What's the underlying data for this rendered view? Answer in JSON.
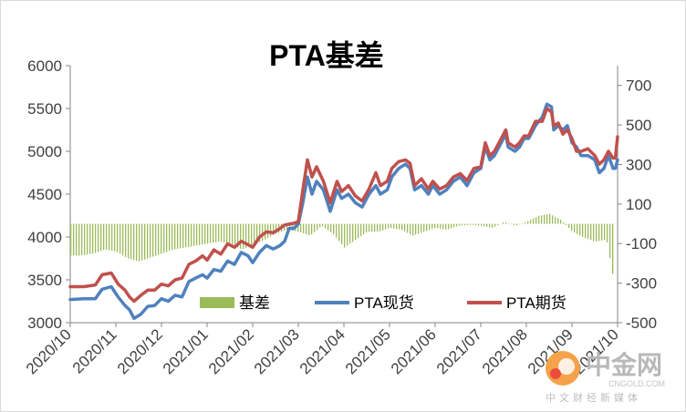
{
  "chart_data": {
    "type": "line",
    "title": "PTA基差",
    "legend_position": "bottom-inside",
    "grid": false,
    "x_ticks": [
      "2020/10",
      "2020/11",
      "2020/12",
      "2021/01",
      "2021/02",
      "2021/03",
      "2021/04",
      "2021/05",
      "2021/06",
      "2021/07",
      "2021/08",
      "2021/09",
      "2021/10"
    ],
    "y_left": {
      "min": 3000,
      "max": 6000,
      "ticks": [
        3000,
        3500,
        4000,
        4500,
        5000,
        5500,
        6000
      ]
    },
    "y_right": {
      "min": -500,
      "max": 800,
      "ticks": [
        -500,
        -300,
        -100,
        100,
        300,
        500,
        700
      ]
    },
    "series": [
      {
        "name": "基差",
        "kind": "bar",
        "axis": "right",
        "color": "#9bbb59",
        "points": [
          [
            0.0,
            -160
          ],
          [
            0.25,
            -160
          ],
          [
            0.5,
            -150
          ],
          [
            0.75,
            -130
          ],
          [
            1.0,
            -140
          ],
          [
            1.25,
            -175
          ],
          [
            1.5,
            -190
          ],
          [
            1.75,
            -170
          ],
          [
            2.0,
            -150
          ],
          [
            2.25,
            -130
          ],
          [
            2.5,
            -120
          ],
          [
            2.75,
            -110
          ],
          [
            3.0,
            -100
          ],
          [
            3.25,
            -90
          ],
          [
            3.5,
            -100
          ],
          [
            3.75,
            -130
          ],
          [
            4.0,
            -110
          ],
          [
            4.25,
            -80
          ],
          [
            4.5,
            -50
          ],
          [
            4.75,
            -30
          ],
          [
            5.0,
            -40
          ],
          [
            5.25,
            -60
          ],
          [
            5.5,
            -10
          ],
          [
            5.75,
            -50
          ],
          [
            6.0,
            -120
          ],
          [
            6.25,
            -80
          ],
          [
            6.5,
            -40
          ],
          [
            6.75,
            -40
          ],
          [
            7.0,
            -20
          ],
          [
            7.25,
            -30
          ],
          [
            7.5,
            -60
          ],
          [
            7.75,
            -40
          ],
          [
            8.0,
            -20
          ],
          [
            8.25,
            -30
          ],
          [
            8.5,
            -10
          ],
          [
            8.75,
            -5
          ],
          [
            9.0,
            -10
          ],
          [
            9.25,
            -20
          ],
          [
            9.5,
            10
          ],
          [
            9.75,
            -10
          ],
          [
            10.0,
            10
          ],
          [
            10.25,
            40
          ],
          [
            10.5,
            50
          ],
          [
            10.75,
            20
          ],
          [
            11.0,
            -40
          ],
          [
            11.25,
            -70
          ],
          [
            11.5,
            -90
          ],
          [
            11.75,
            -80
          ],
          [
            11.9,
            -280
          ]
        ]
      },
      {
        "name": "PTA现货",
        "kind": "line",
        "axis": "left",
        "color": "#4f81bd",
        "points": [
          [
            0.0,
            3270
          ],
          [
            0.3,
            3280
          ],
          [
            0.55,
            3280
          ],
          [
            0.7,
            3390
          ],
          [
            0.9,
            3420
          ],
          [
            1.05,
            3300
          ],
          [
            1.2,
            3200
          ],
          [
            1.3,
            3150
          ],
          [
            1.4,
            3050
          ],
          [
            1.55,
            3100
          ],
          [
            1.7,
            3190
          ],
          [
            1.85,
            3200
          ],
          [
            2.0,
            3280
          ],
          [
            2.15,
            3250
          ],
          [
            2.3,
            3320
          ],
          [
            2.45,
            3300
          ],
          [
            2.6,
            3480
          ],
          [
            2.75,
            3520
          ],
          [
            2.9,
            3560
          ],
          [
            3.0,
            3520
          ],
          [
            3.15,
            3620
          ],
          [
            3.3,
            3600
          ],
          [
            3.45,
            3720
          ],
          [
            3.6,
            3680
          ],
          [
            3.75,
            3820
          ],
          [
            3.9,
            3780
          ],
          [
            4.0,
            3700
          ],
          [
            4.15,
            3820
          ],
          [
            4.3,
            3900
          ],
          [
            4.45,
            3860
          ],
          [
            4.6,
            3900
          ],
          [
            4.7,
            3950
          ],
          [
            4.8,
            4100
          ],
          [
            4.9,
            4100
          ],
          [
            5.0,
            4150
          ],
          [
            5.1,
            4400
          ],
          [
            5.2,
            4700
          ],
          [
            5.3,
            4500
          ],
          [
            5.4,
            4650
          ],
          [
            5.55,
            4550
          ],
          [
            5.7,
            4300
          ],
          [
            5.85,
            4550
          ],
          [
            5.95,
            4450
          ],
          [
            6.1,
            4500
          ],
          [
            6.25,
            4400
          ],
          [
            6.4,
            4350
          ],
          [
            6.55,
            4500
          ],
          [
            6.7,
            4600
          ],
          [
            6.8,
            4500
          ],
          [
            6.95,
            4550
          ],
          [
            7.05,
            4700
          ],
          [
            7.2,
            4800
          ],
          [
            7.35,
            4850
          ],
          [
            7.45,
            4800
          ],
          [
            7.55,
            4550
          ],
          [
            7.7,
            4600
          ],
          [
            7.85,
            4500
          ],
          [
            7.95,
            4600
          ],
          [
            8.1,
            4500
          ],
          [
            8.25,
            4550
          ],
          [
            8.4,
            4650
          ],
          [
            8.55,
            4700
          ],
          [
            8.7,
            4600
          ],
          [
            8.85,
            4750
          ],
          [
            9.0,
            4800
          ],
          [
            9.1,
            5050
          ],
          [
            9.2,
            4900
          ],
          [
            9.3,
            4950
          ],
          [
            9.45,
            5100
          ],
          [
            9.55,
            5200
          ],
          [
            9.6,
            5050
          ],
          [
            9.75,
            5000
          ],
          [
            9.85,
            5050
          ],
          [
            9.95,
            5150
          ],
          [
            10.05,
            5150
          ],
          [
            10.2,
            5300
          ],
          [
            10.35,
            5400
          ],
          [
            10.45,
            5550
          ],
          [
            10.55,
            5520
          ],
          [
            10.6,
            5250
          ],
          [
            10.7,
            5300
          ],
          [
            10.8,
            5250
          ],
          [
            10.9,
            5300
          ],
          [
            11.0,
            5100
          ],
          [
            11.1,
            5050
          ],
          [
            11.2,
            4950
          ],
          [
            11.35,
            4950
          ],
          [
            11.5,
            4900
          ],
          [
            11.6,
            4750
          ],
          [
            11.7,
            4800
          ],
          [
            11.8,
            4950
          ],
          [
            11.9,
            4800
          ],
          [
            11.95,
            4800
          ],
          [
            12.0,
            4900
          ]
        ]
      },
      {
        "name": "PTA期货",
        "kind": "line",
        "axis": "left",
        "color": "#c0504d",
        "points": [
          [
            0.0,
            3420
          ],
          [
            0.3,
            3420
          ],
          [
            0.55,
            3440
          ],
          [
            0.7,
            3560
          ],
          [
            0.9,
            3580
          ],
          [
            1.05,
            3450
          ],
          [
            1.2,
            3380
          ],
          [
            1.3,
            3300
          ],
          [
            1.4,
            3250
          ],
          [
            1.55,
            3320
          ],
          [
            1.7,
            3380
          ],
          [
            1.85,
            3380
          ],
          [
            2.0,
            3450
          ],
          [
            2.15,
            3430
          ],
          [
            2.3,
            3500
          ],
          [
            2.45,
            3520
          ],
          [
            2.6,
            3680
          ],
          [
            2.75,
            3720
          ],
          [
            2.9,
            3780
          ],
          [
            3.0,
            3730
          ],
          [
            3.15,
            3850
          ],
          [
            3.3,
            3800
          ],
          [
            3.45,
            3920
          ],
          [
            3.6,
            3880
          ],
          [
            3.75,
            3950
          ],
          [
            3.9,
            3910
          ],
          [
            4.0,
            3880
          ],
          [
            4.15,
            4000
          ],
          [
            4.3,
            4060
          ],
          [
            4.45,
            4050
          ],
          [
            4.6,
            4100
          ],
          [
            4.7,
            4140
          ],
          [
            4.8,
            4150
          ],
          [
            4.9,
            4160
          ],
          [
            5.0,
            4180
          ],
          [
            5.1,
            4550
          ],
          [
            5.2,
            4900
          ],
          [
            5.3,
            4700
          ],
          [
            5.4,
            4820
          ],
          [
            5.55,
            4650
          ],
          [
            5.7,
            4400
          ],
          [
            5.85,
            4650
          ],
          [
            5.95,
            4530
          ],
          [
            6.1,
            4600
          ],
          [
            6.25,
            4480
          ],
          [
            6.4,
            4420
          ],
          [
            6.55,
            4560
          ],
          [
            6.7,
            4750
          ],
          [
            6.8,
            4600
          ],
          [
            6.95,
            4650
          ],
          [
            7.05,
            4800
          ],
          [
            7.2,
            4880
          ],
          [
            7.35,
            4900
          ],
          [
            7.45,
            4860
          ],
          [
            7.55,
            4600
          ],
          [
            7.7,
            4680
          ],
          [
            7.85,
            4560
          ],
          [
            7.95,
            4650
          ],
          [
            8.1,
            4560
          ],
          [
            8.25,
            4600
          ],
          [
            8.4,
            4700
          ],
          [
            8.55,
            4740
          ],
          [
            8.7,
            4660
          ],
          [
            8.85,
            4800
          ],
          [
            9.0,
            4820
          ],
          [
            9.1,
            5100
          ],
          [
            9.2,
            4950
          ],
          [
            9.3,
            5000
          ],
          [
            9.45,
            5150
          ],
          [
            9.55,
            5250
          ],
          [
            9.6,
            5100
          ],
          [
            9.75,
            5050
          ],
          [
            9.85,
            5100
          ],
          [
            9.95,
            5180
          ],
          [
            10.05,
            5180
          ],
          [
            10.2,
            5350
          ],
          [
            10.35,
            5350
          ],
          [
            10.45,
            5500
          ],
          [
            10.55,
            5460
          ],
          [
            10.6,
            5300
          ],
          [
            10.7,
            5330
          ],
          [
            10.8,
            5200
          ],
          [
            10.9,
            5250
          ],
          [
            11.0,
            5150
          ],
          [
            11.1,
            5000
          ],
          [
            11.2,
            5000
          ],
          [
            11.35,
            5030
          ],
          [
            11.5,
            4950
          ],
          [
            11.6,
            4850
          ],
          [
            11.7,
            4900
          ],
          [
            11.8,
            5000
          ],
          [
            11.9,
            4920
          ],
          [
            11.95,
            4920
          ],
          [
            12.0,
            5170
          ]
        ]
      }
    ]
  },
  "watermark": {
    "brand": "中金网",
    "domain": "CNGOLD.COM",
    "tagline": "中文财经新媒体"
  }
}
